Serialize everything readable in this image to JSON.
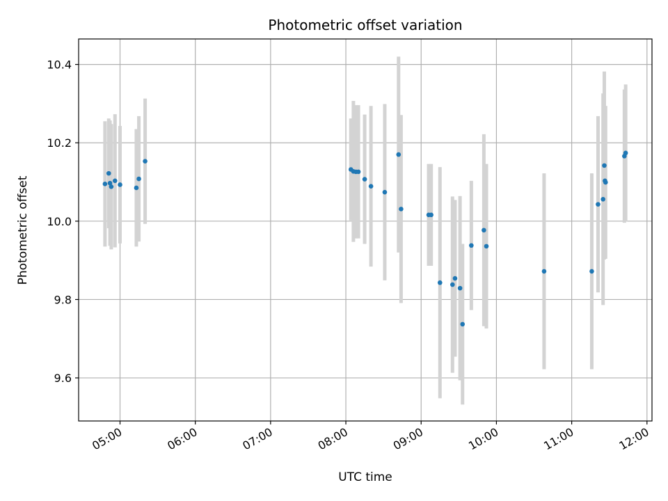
{
  "chart_data": {
    "type": "scatter",
    "title": "Photometric offset variation",
    "xlabel": "UTC time",
    "ylabel": "Photometric offset",
    "x_ticks": [
      "05:00",
      "06:00",
      "07:00",
      "08:00",
      "09:00",
      "10:00",
      "11:00",
      "12:00"
    ],
    "y_ticks": [
      "9.6",
      "9.8",
      "10.0",
      "10.2",
      "10.4"
    ],
    "xlim": [
      "04:27",
      "12:04"
    ],
    "ylim": [
      9.49,
      10.465
    ],
    "grid": true,
    "colors": {
      "point": "#1f77b4",
      "errorbar": "#d3d3d3",
      "grid": "#b0b0b0"
    },
    "series": [
      {
        "points": [
          {
            "t": "04:48",
            "y": 10.095,
            "err": 0.16
          },
          {
            "t": "04:51",
            "y": 10.122,
            "err": 0.14
          },
          {
            "t": "04:52",
            "y": 10.097,
            "err": 0.16
          },
          {
            "t": "04:53",
            "y": 10.088,
            "err": 0.16
          },
          {
            "t": "04:56",
            "y": 10.103,
            "err": 0.17
          },
          {
            "t": "05:00",
            "y": 10.093,
            "err": 0.15
          },
          {
            "t": "05:13",
            "y": 10.085,
            "err": 0.15
          },
          {
            "t": "05:15",
            "y": 10.108,
            "err": 0.16
          },
          {
            "t": "05:20",
            "y": 10.153,
            "err": 0.16
          },
          {
            "t": "08:04",
            "y": 10.132,
            "err": 0.13
          },
          {
            "t": "08:06",
            "y": 10.127,
            "err": 0.18
          },
          {
            "t": "08:08",
            "y": 10.126,
            "err": 0.17
          },
          {
            "t": "08:10",
            "y": 10.126,
            "err": 0.17
          },
          {
            "t": "08:15",
            "y": 10.107,
            "err": 0.165
          },
          {
            "t": "08:20",
            "y": 10.089,
            "err": 0.205
          },
          {
            "t": "08:31",
            "y": 10.074,
            "err": 0.225
          },
          {
            "t": "08:42",
            "y": 10.17,
            "err": 0.25
          },
          {
            "t": "08:44",
            "y": 10.031,
            "err": 0.24
          },
          {
            "t": "09:06",
            "y": 10.016,
            "err": 0.13
          },
          {
            "t": "09:08",
            "y": 10.016,
            "err": 0.13
          },
          {
            "t": "09:15",
            "y": 9.843,
            "err": 0.295
          },
          {
            "t": "09:25",
            "y": 9.838,
            "err": 0.225
          },
          {
            "t": "09:27",
            "y": 9.854,
            "err": 0.2
          },
          {
            "t": "09:31",
            "y": 9.829,
            "err": 0.235
          },
          {
            "t": "09:33",
            "y": 9.737,
            "err": 0.205
          },
          {
            "t": "09:40",
            "y": 9.938,
            "err": 0.165
          },
          {
            "t": "09:50",
            "y": 9.977,
            "err": 0.245
          },
          {
            "t": "09:52",
            "y": 9.936,
            "err": 0.21
          },
          {
            "t": "10:38",
            "y": 9.872,
            "err": 0.25
          },
          {
            "t": "11:16",
            "y": 9.872,
            "err": 0.25
          },
          {
            "t": "11:21",
            "y": 10.043,
            "err": 0.225
          },
          {
            "t": "11:25",
            "y": 10.056,
            "err": 0.27
          },
          {
            "t": "11:26",
            "y": 10.142,
            "err": 0.24
          },
          {
            "t": "11:26:30",
            "y": 10.103,
            "err": 0.19
          },
          {
            "t": "11:27",
            "y": 10.099,
            "err": 0.195
          },
          {
            "t": "11:42",
            "y": 10.166,
            "err": 0.17
          },
          {
            "t": "11:43",
            "y": 10.174,
            "err": 0.175
          }
        ]
      }
    ]
  }
}
